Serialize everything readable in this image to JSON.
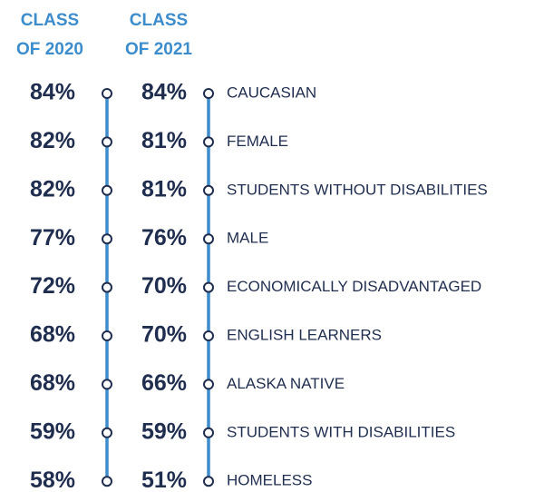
{
  "headers": [
    [
      "CLASS",
      "OF 2020"
    ],
    [
      "CLASS",
      "OF 2021"
    ]
  ],
  "rows": [
    {
      "class_2020": "84%",
      "class_2021": "84%",
      "label": "CAUCASIAN"
    },
    {
      "class_2020": "82%",
      "class_2021": "81%",
      "label": "FEMALE"
    },
    {
      "class_2020": "82%",
      "class_2021": "81%",
      "label": "STUDENTS WITHOUT DISABILITIES"
    },
    {
      "class_2020": "77%",
      "class_2021": "76%",
      "label": "MALE"
    },
    {
      "class_2020": "72%",
      "class_2021": "70%",
      "label": "ECONOMICALLY DISADVANTAGED"
    },
    {
      "class_2020": "68%",
      "class_2021": "70%",
      "label": "ENGLISH LEARNERS"
    },
    {
      "class_2020": "68%",
      "class_2021": "66%",
      "label": "ALASKA NATIVE"
    },
    {
      "class_2020": "59%",
      "class_2021": "59%",
      "label": "STUDENTS WITH DISABILITIES"
    },
    {
      "class_2020": "58%",
      "class_2021": "51%",
      "label": "HOMELESS"
    }
  ]
}
